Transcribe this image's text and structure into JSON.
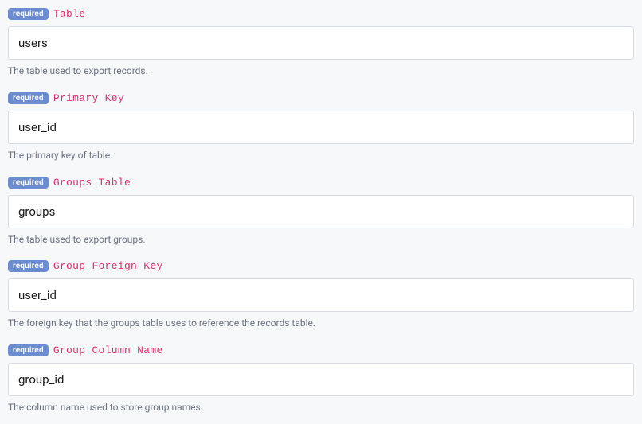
{
  "badge_text": "required",
  "colors": {
    "background": "#f7f8fa",
    "badge_bg": "#6b8cce",
    "badge_text": "#ffffff",
    "label_text": "#e12d6f",
    "input_bg": "#ffffff",
    "input_border": "#d8dce3",
    "input_text": "#1a1a1a",
    "help_text": "#6b7280"
  },
  "fields": {
    "table": {
      "label": "Table",
      "value": "users",
      "help": "The table used to export records."
    },
    "primary_key": {
      "label": "Primary Key",
      "value": "user_id",
      "help": "The primary key of table."
    },
    "groups_table": {
      "label": "Groups Table",
      "value": "groups",
      "help": "The table used to export groups."
    },
    "group_foreign_key": {
      "label": "Group Foreign Key",
      "value": "user_id",
      "help": "The foreign key that the groups table uses to reference the records table."
    },
    "group_column_name": {
      "label": "Group Column Name",
      "value": "group_id",
      "help": "The column name used to store group names."
    }
  }
}
